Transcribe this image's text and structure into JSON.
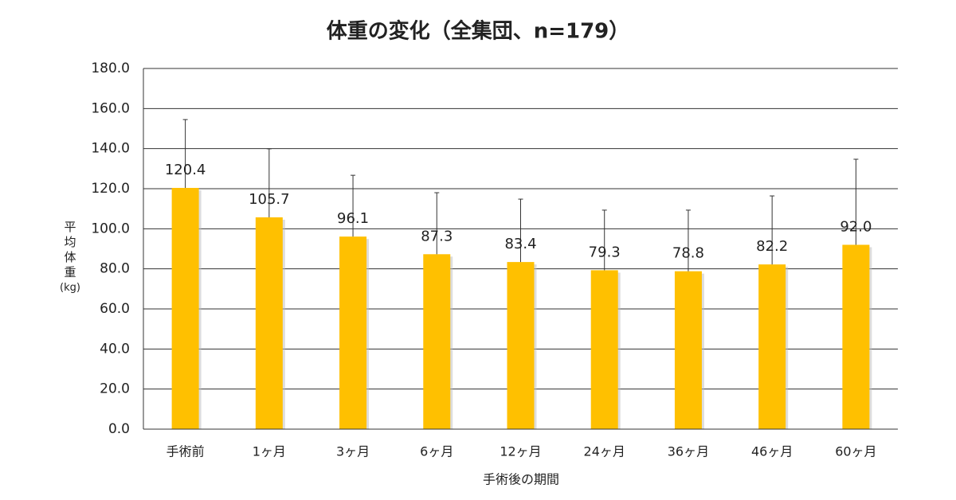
{
  "chart_data": {
    "type": "bar",
    "title": "体重の変化（全集団、n=179）",
    "x_label": "手術後の期間",
    "y_label": "平均体重(kg)",
    "categories": [
      "手術前",
      "1ヶ月",
      "3ヶ月",
      "6ヶ月",
      "12ヶ月",
      "24ヶ月",
      "36ヶ月",
      "46ヶ月",
      "60ヶ月"
    ],
    "values": [
      120.4,
      105.7,
      96.1,
      87.3,
      83.4,
      79.3,
      78.8,
      82.2,
      92.0
    ],
    "value_labels": [
      "120.4",
      "105.7",
      "96.1",
      "87.3",
      "83.4",
      "79.3",
      "78.8",
      "82.2",
      "92.0"
    ],
    "errors": [
      34.1,
      34.2,
      30.6,
      30.7,
      31.4,
      30.0,
      30.5,
      34.2,
      42.7
    ],
    "color": "#FFC000",
    "ylim": [
      0,
      180
    ],
    "yticks": [
      {
        "value": 0,
        "label": "0.0"
      },
      {
        "value": 20,
        "label": "20.0"
      },
      {
        "value": 40,
        "label": "40.0"
      },
      {
        "value": 60,
        "label": "60.0"
      },
      {
        "value": 80,
        "label": "80.0"
      },
      {
        "value": 100,
        "label": "100.0"
      },
      {
        "value": 120,
        "label": "120.0"
      },
      {
        "value": 140,
        "label": "140.0"
      },
      {
        "value": 160,
        "label": "160.0"
      },
      {
        "value": 180,
        "label": "180.0"
      }
    ],
    "grid": true
  }
}
